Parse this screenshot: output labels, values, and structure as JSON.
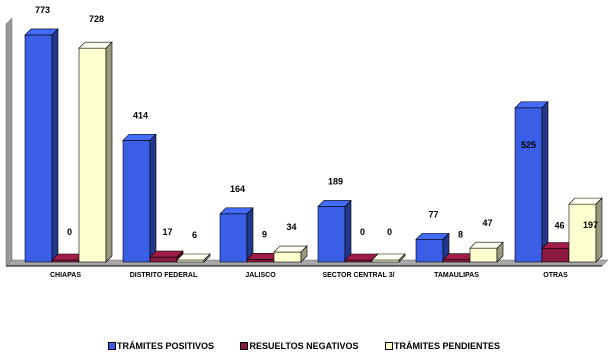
{
  "chart_data": {
    "type": "bar",
    "categories": [
      "CHIAPAS",
      "DISTRITO FEDERAL",
      "JALISCO",
      "SECTOR CENTRAL 3/",
      "TAMAULIPAS",
      "OTRAS"
    ],
    "series": [
      {
        "name": "TRÁMITES POSITIVOS",
        "values": [
          773,
          414,
          164,
          189,
          77,
          525
        ],
        "color": "#3a5ee6"
      },
      {
        "name": "RESUELTOS NEGATIVOS",
        "values": [
          0,
          17,
          9,
          0,
          8,
          46
        ],
        "color": "#8a1a3e"
      },
      {
        "name": "TRÁMITES PENDIENTES",
        "values": [
          728,
          6,
          34,
          0,
          47,
          197
        ],
        "color": "#ffffd0"
      }
    ],
    "ylim": [
      0,
      800
    ],
    "grid": false,
    "legend_position": "bottom",
    "three_d": true
  }
}
